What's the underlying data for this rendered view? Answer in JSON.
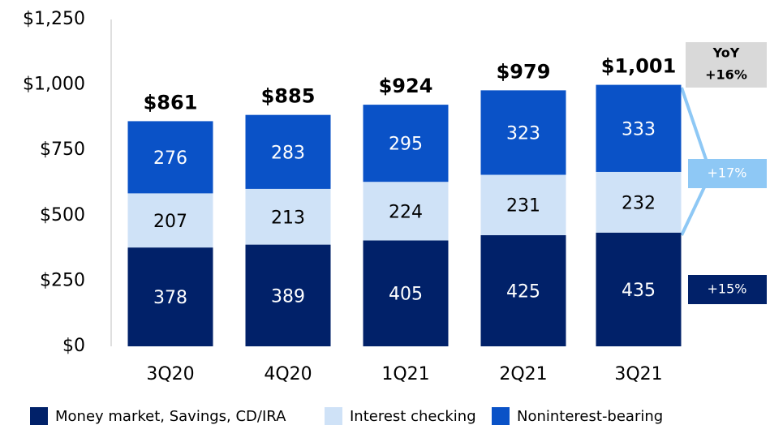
{
  "chart_data": {
    "type": "bar",
    "stacked": true,
    "categories": [
      "3Q20",
      "4Q20",
      "1Q21",
      "2Q21",
      "3Q21"
    ],
    "series": [
      {
        "name": "Money market, Savings, CD/IRA",
        "color": "#012169",
        "values": [
          378,
          389,
          405,
          425,
          435
        ]
      },
      {
        "name": "Interest checking",
        "color": "#cfe2f7",
        "values": [
          207,
          213,
          224,
          231,
          232
        ]
      },
      {
        "name": "Noninterest-bearing",
        "color": "#0a52c7",
        "values": [
          276,
          283,
          295,
          323,
          333
        ]
      }
    ],
    "totals": [
      861,
      885,
      924,
      979,
      1001
    ],
    "total_labels": [
      "$861",
      "$885",
      "$924",
      "$979",
      "$1,001"
    ],
    "ylim": [
      0,
      1250
    ],
    "yticks": [
      {
        "value": 0,
        "label": "$0"
      },
      {
        "value": 250,
        "label": "$250"
      },
      {
        "value": 500,
        "label": "$500"
      },
      {
        "value": 750,
        "label": "$750"
      },
      {
        "value": 1000,
        "label": "$1,000"
      },
      {
        "value": 1250,
        "label": "$1,250"
      }
    ],
    "annotations": {
      "yoy_title": "YoY",
      "yoy_total": "+16%",
      "yoy_interest_bearing": "+17%",
      "yoy_money_market": "+15%"
    },
    "legend": "bottom"
  }
}
